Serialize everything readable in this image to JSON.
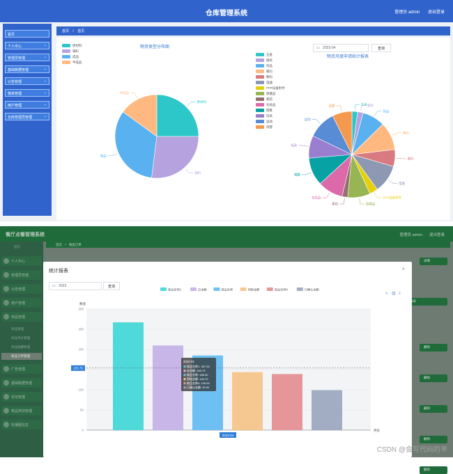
{
  "top": {
    "header": {
      "title": "仓库管理系统",
      "user": "管理员 admin",
      "logout": "退出登录"
    },
    "sidebar": {
      "items": [
        {
          "label": "首页",
          "has_arrow": false
        },
        {
          "label": "个人中心",
          "has_arrow": true
        },
        {
          "label": "管理员管理",
          "has_arrow": true
        },
        {
          "label": "基础数据管理",
          "has_arrow": true
        },
        {
          "label": "公告管理",
          "has_arrow": true
        },
        {
          "label": "物资管理",
          "has_arrow": true
        },
        {
          "label": "用户管理",
          "has_arrow": true
        },
        {
          "label": "仓库管理员管理",
          "has_arrow": true
        }
      ]
    },
    "breadcrumb": {
      "home": "首页",
      "sep": "/",
      "current": "首页"
    },
    "date_filter": {
      "value": "2023-04",
      "button": "查询"
    }
  },
  "bottom": {
    "header": {
      "title": "餐厅点餐管理系统",
      "user": "管理员 admin",
      "logout": "退出登录"
    },
    "breadcrumb": {
      "home": "首页",
      "sep": "/",
      "current": "商品订单"
    },
    "sidebar": {
      "items": [
        {
          "label": "首页",
          "type": "plain"
        },
        {
          "label": "个人中心",
          "type": "group"
        },
        {
          "label": "管理员管理",
          "type": "group"
        },
        {
          "label": "公告管理",
          "type": "group"
        },
        {
          "label": "用户管理",
          "type": "group"
        },
        {
          "label": "商品管理",
          "type": "group"
        },
        {
          "label": "商品管理",
          "type": "sub"
        },
        {
          "label": "商品评价管理",
          "type": "sub"
        },
        {
          "label": "商品收藏管理",
          "type": "sub"
        },
        {
          "label": "商品订单管理",
          "type": "sub-active"
        },
        {
          "label": "广告管理",
          "type": "group"
        },
        {
          "label": "基础数据管理",
          "type": "group"
        },
        {
          "label": "论坛管理",
          "type": "group"
        },
        {
          "label": "菜品类别管理",
          "type": "group"
        },
        {
          "label": "轮播图信息",
          "type": "group"
        }
      ]
    },
    "bg_buttons": [
      "详情",
      "报表",
      "删除",
      "删除",
      "删除",
      "删除",
      "删除"
    ],
    "modal": {
      "title": "统计报表",
      "close": "×",
      "date_value": "2023",
      "query_button": "查询",
      "axis_pointer_label": "153.75",
      "x_pointer_label": "2023-04",
      "tooltip_title": "2023-04"
    }
  },
  "chart_data": [
    {
      "type": "pie",
      "title": "物资类型分布图",
      "slices": [
        {
          "name": "原材料",
          "value": 25,
          "color": "#2ec7c9"
        },
        {
          "name": "辅料",
          "value": 27,
          "color": "#b6a2de"
        },
        {
          "name": "成品",
          "value": 33,
          "color": "#5ab1ef"
        },
        {
          "name": "半成品",
          "value": 15,
          "color": "#ffb980"
        }
      ],
      "legend_position": "top-left"
    },
    {
      "type": "pie",
      "title": "物资月度申请统计报表",
      "slices": [
        {
          "name": "五金",
          "value": 2,
          "color": "#2ec7c9"
        },
        {
          "name": "服装",
          "value": 2,
          "color": "#b6a2de"
        },
        {
          "name": "饰品",
          "value": 8,
          "color": "#5ab1ef"
        },
        {
          "name": "箱包",
          "value": 10,
          "color": "#ffb980"
        },
        {
          "name": "数码",
          "value": 6,
          "color": "#d87a80"
        },
        {
          "name": "电器",
          "value": 10,
          "color": "#8d98b3"
        },
        {
          "name": "FPP设备附件",
          "value": 3,
          "color": "#e5cf0d"
        },
        {
          "name": "保健品",
          "value": 8,
          "color": "#97b552"
        },
        {
          "name": "家纺",
          "value": 2,
          "color": "#95706d"
        },
        {
          "name": "化妆品",
          "value": 9,
          "color": "#dc69aa"
        },
        {
          "name": "鞋靴",
          "value": 10,
          "color": "#07a2a4"
        },
        {
          "name": "玩具",
          "value": 8,
          "color": "#9a7fd1"
        },
        {
          "name": "运动",
          "value": 10,
          "color": "#588dd5"
        },
        {
          "name": "母婴",
          "value": 7,
          "color": "#f5994e"
        }
      ],
      "legend": [
        "五金",
        "服装",
        "饰品",
        "箱包",
        "数码",
        "电器",
        "FPP设备附件",
        "保健品",
        "家纺",
        "化妆品",
        "鞋靴",
        "玩具",
        "运动",
        "母婴"
      ],
      "legend_position": "left"
    },
    {
      "type": "bar",
      "categories": [
        "2023-04"
      ],
      "series": [
        {
          "name": "商品名称1",
          "values": [
            267.0
          ],
          "color": "#4fd9d9"
        },
        {
          "name": "总金额",
          "values": [
            209.79
          ],
          "color": "#c8b6e8"
        },
        {
          "name": "商品名称",
          "values": [
            185.0
          ],
          "color": "#6ec0f2"
        },
        {
          "name": "到账金额",
          "values": [
            143.79
          ],
          "color": "#f6c891"
        },
        {
          "name": "商品名称4",
          "values": [
            139.0
          ],
          "color": "#e69699"
        },
        {
          "name": "已确认金额",
          "values": [
            99.0
          ],
          "color": "#a2adc4"
        }
      ],
      "legend": [
        "商品名称1",
        "总金额",
        "商品名称",
        "到账金额",
        "商品名称4",
        "已确认金额"
      ],
      "tooltip_values": [
        "267.00",
        "209.79",
        "185.00",
        "143.79",
        "139.00",
        "99.00"
      ],
      "ylim": [
        0,
        300
      ],
      "yticks": [
        "0",
        "50",
        "100",
        "150",
        "200",
        "250",
        "300"
      ],
      "ylabel": "数值",
      "xlabel": "月份",
      "grid": true
    }
  ]
}
